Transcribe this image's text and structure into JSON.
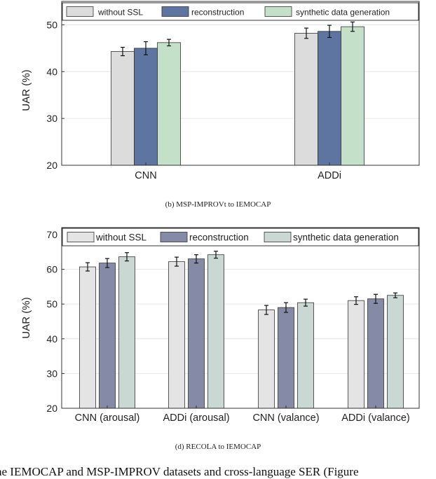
{
  "chart_data": [
    {
      "type": "bar",
      "ylabel": "UAR (%)",
      "ylim": [
        20,
        55
      ],
      "yticks": [
        20,
        30,
        40,
        50
      ],
      "grid": true,
      "legend_position": "top",
      "categories": [
        "CNN",
        "ADDi"
      ],
      "series": [
        {
          "name": "without SSL",
          "color": "#dcdcdc",
          "values": [
            44.3,
            48.2
          ],
          "errors": [
            0.9,
            1.1
          ]
        },
        {
          "name": "reconstruction",
          "color": "#5d75a0",
          "values": [
            45.0,
            48.6
          ],
          "errors": [
            1.4,
            1.3
          ]
        },
        {
          "name": "synthetic data generation",
          "color": "#c4e0c8",
          "values": [
            46.2,
            49.6
          ],
          "errors": [
            0.7,
            1.0
          ]
        }
      ]
    },
    {
      "type": "bar",
      "ylabel": "UAR (%)",
      "ylim": [
        20,
        72
      ],
      "yticks": [
        20,
        30,
        40,
        50,
        60,
        70
      ],
      "grid": true,
      "legend_position": "top",
      "categories": [
        "CNN (arousal)",
        "ADDi (arousal)",
        "CNN (valance)",
        "ADDi (valance)"
      ],
      "series": [
        {
          "name": "without SSL",
          "color": "#e4e4e4",
          "values": [
            60.7,
            62.2,
            48.3,
            51.0
          ],
          "errors": [
            1.2,
            1.3,
            1.3,
            1.1
          ]
        },
        {
          "name": "reconstruction",
          "color": "#858aa6",
          "values": [
            61.8,
            63.0,
            49.0,
            51.5
          ],
          "errors": [
            1.3,
            1.2,
            1.4,
            1.3
          ]
        },
        {
          "name": "synthetic data generation",
          "color": "#c9d8d2",
          "values": [
            63.6,
            64.2,
            50.4,
            52.5
          ],
          "errors": [
            1.2,
            1.0,
            1.0,
            0.7
          ]
        }
      ]
    }
  ],
  "captions": {
    "b": "(b) MSP-IMPROVt to IEMOCAP",
    "d": "(d) RECOLA to IEMOCAP"
  },
  "page_text": {
    "bottom_line": "he IEMOCAP and MSP-IMPROV datasets and cross-language SER (Figure"
  }
}
